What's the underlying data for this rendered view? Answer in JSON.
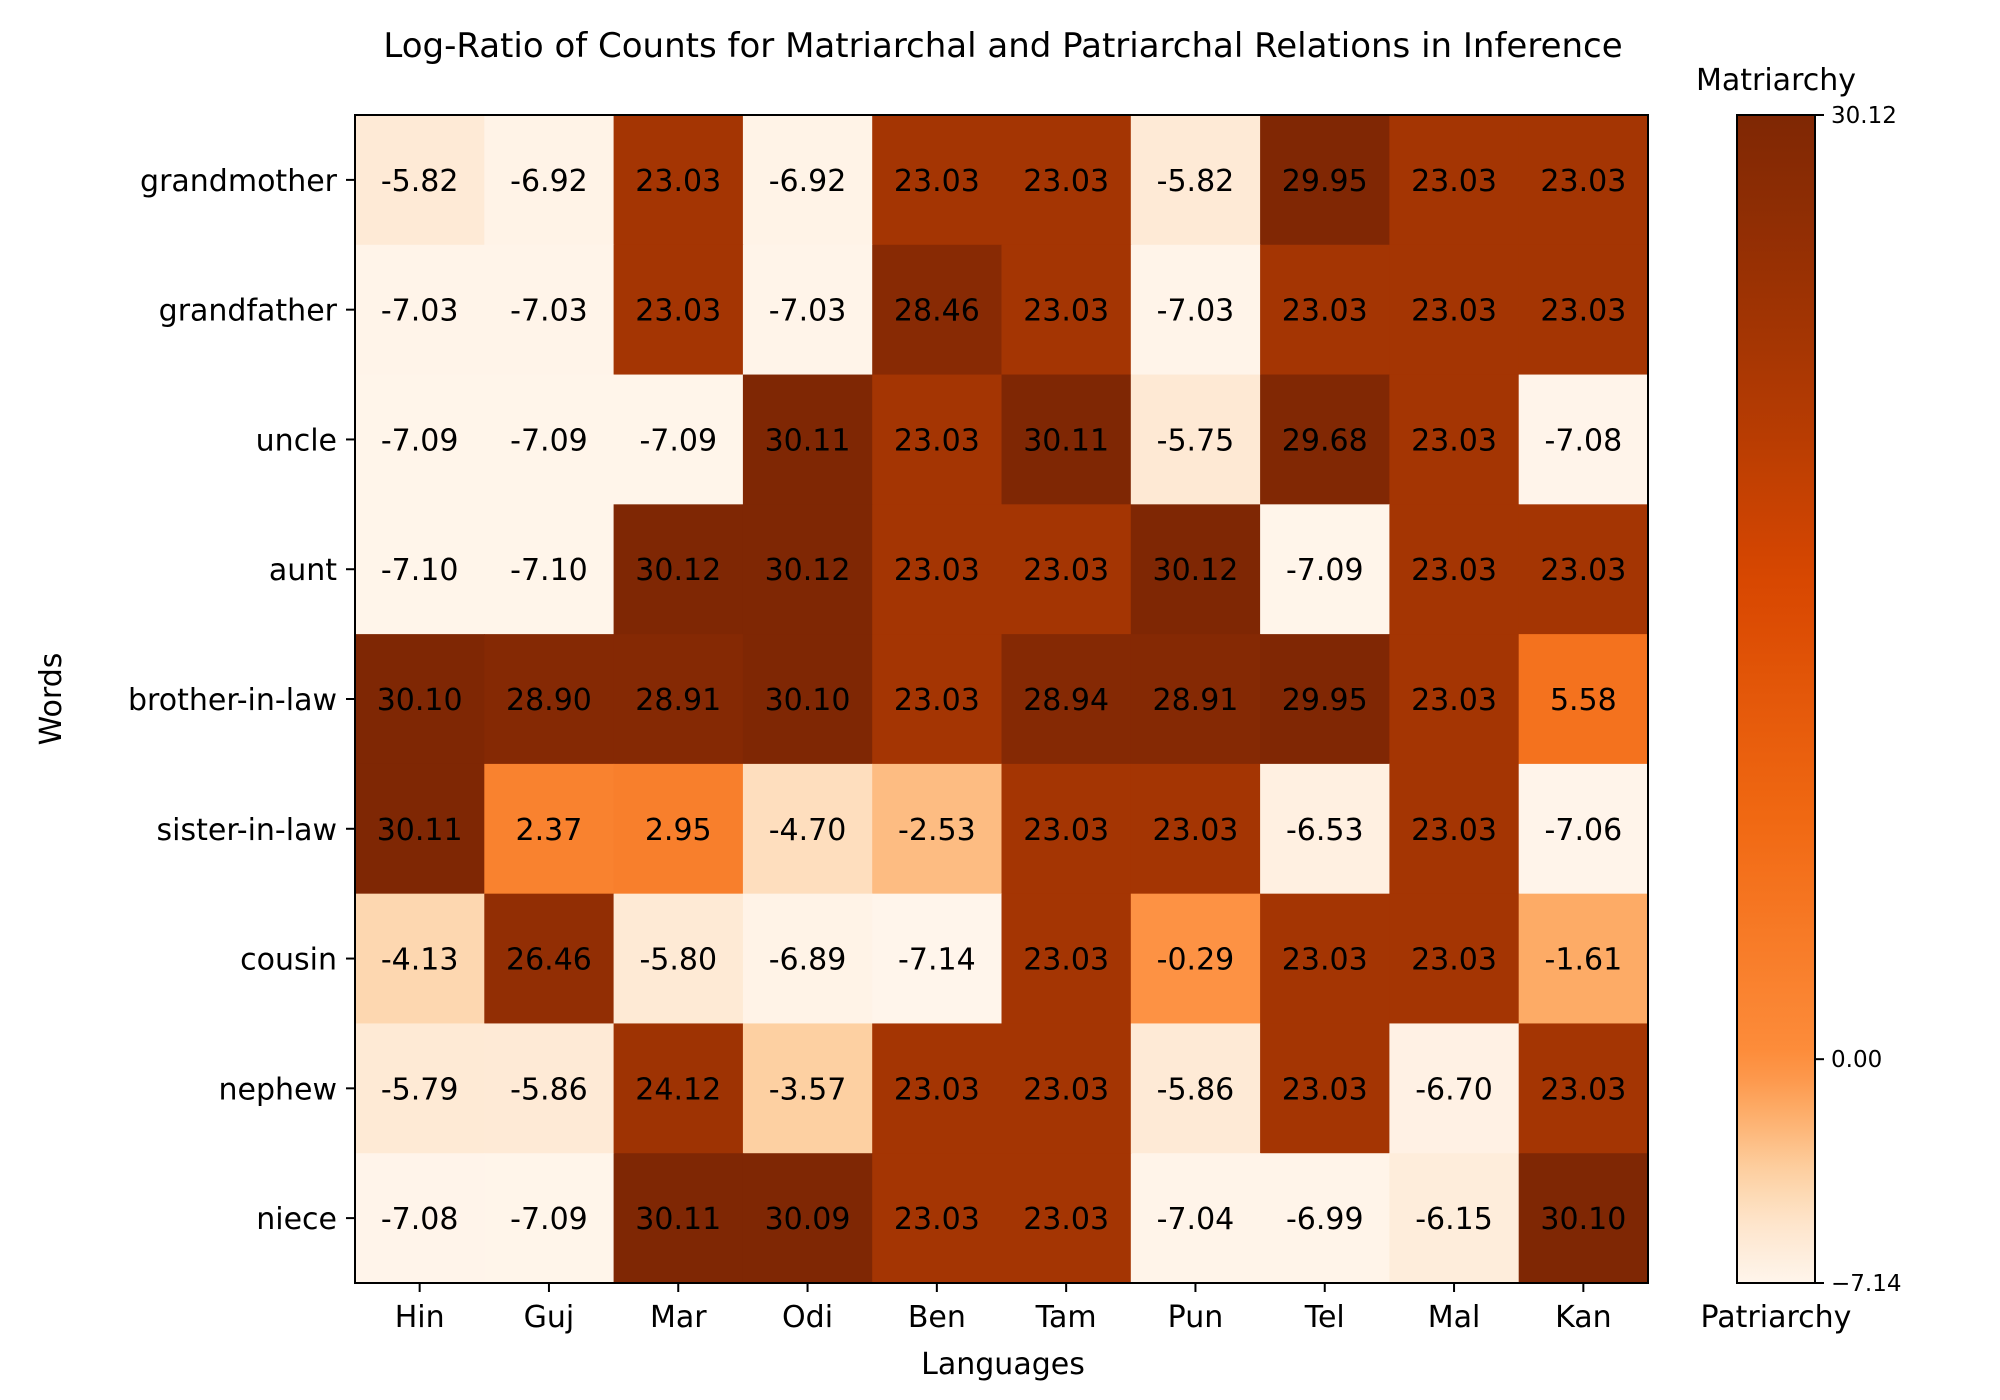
{
  "chart_data": {
    "type": "heatmap",
    "title": "Log-Ratio of Counts for Matriarchal and Patriarchal Relations in Inference",
    "xlabel": "Languages",
    "ylabel": "Words",
    "x_categories": [
      "Hin",
      "Guj",
      "Mar",
      "Odi",
      "Ben",
      "Tam",
      "Pun",
      "Tel",
      "Mal",
      "Kan"
    ],
    "y_categories": [
      "grandmother",
      "grandfather",
      "uncle",
      "aunt",
      "brother-in-law",
      "sister-in-law",
      "cousin",
      "nephew",
      "niece"
    ],
    "values": [
      [
        -5.82,
        -6.92,
        23.03,
        -6.92,
        23.03,
        23.03,
        -5.82,
        29.95,
        23.03,
        23.03
      ],
      [
        -7.03,
        -7.03,
        23.03,
        -7.03,
        28.46,
        23.03,
        -7.03,
        23.03,
        23.03,
        23.03
      ],
      [
        -7.09,
        -7.09,
        -7.09,
        30.11,
        23.03,
        30.11,
        -5.75,
        29.68,
        23.03,
        -7.08
      ],
      [
        -7.1,
        -7.1,
        30.12,
        30.12,
        23.03,
        23.03,
        30.12,
        -7.09,
        23.03,
        23.03
      ],
      [
        30.1,
        28.9,
        28.91,
        30.1,
        23.03,
        28.94,
        28.91,
        29.95,
        23.03,
        5.58
      ],
      [
        30.11,
        2.37,
        2.95,
        -4.7,
        -2.53,
        23.03,
        23.03,
        -6.53,
        23.03,
        -7.06
      ],
      [
        -4.13,
        26.46,
        -5.8,
        -6.89,
        -7.14,
        23.03,
        -0.29,
        23.03,
        23.03,
        -1.61
      ],
      [
        -5.79,
        -5.86,
        24.12,
        -3.57,
        23.03,
        23.03,
        -5.86,
        23.03,
        -6.7,
        23.03
      ],
      [
        -7.08,
        -7.09,
        30.11,
        30.09,
        23.03,
        23.03,
        -7.04,
        -6.99,
        -6.15,
        30.1
      ]
    ],
    "value_labels": [
      [
        "-5.82",
        "-6.92",
        "23.03",
        "-6.92",
        "23.03",
        "23.03",
        "-5.82",
        "29.95",
        "23.03",
        "23.03"
      ],
      [
        "-7.03",
        "-7.03",
        "23.03",
        "-7.03",
        "28.46",
        "23.03",
        "-7.03",
        "23.03",
        "23.03",
        "23.03"
      ],
      [
        "-7.09",
        "-7.09",
        "-7.09",
        "30.11",
        "23.03",
        "30.11",
        "-5.75",
        "29.68",
        "23.03",
        "-7.08"
      ],
      [
        "-7.10",
        "-7.10",
        "30.12",
        "30.12",
        "23.03",
        "23.03",
        "30.12",
        "-7.09",
        "23.03",
        "23.03"
      ],
      [
        "30.10",
        "28.90",
        "28.91",
        "30.10",
        "23.03",
        "28.94",
        "28.91",
        "29.95",
        "23.03",
        "5.58"
      ],
      [
        "30.11",
        "2.37",
        "2.95",
        "-4.70",
        "-2.53",
        "23.03",
        "23.03",
        "-6.53",
        "23.03",
        "-7.06"
      ],
      [
        "-4.13",
        "26.46",
        "-5.80",
        "-6.89",
        "-7.14",
        "23.03",
        "-0.29",
        "23.03",
        "23.03",
        "-1.61"
      ],
      [
        "-5.79",
        "-5.86",
        "24.12",
        "-3.57",
        "23.03",
        "23.03",
        "-5.86",
        "23.03",
        "-6.70",
        "23.03"
      ],
      [
        "-7.08",
        "-7.09",
        "30.11",
        "30.09",
        "23.03",
        "23.03",
        "-7.04",
        "-6.99",
        "-6.15",
        "30.10"
      ]
    ],
    "colormap": "Oranges",
    "color_norm": "two-slope, center 0",
    "vmin": -7.14,
    "vcenter": 0,
    "vmax": 30.12,
    "colorbar": {
      "top_label": "Matriarchy",
      "bottom_label": "Patriarchy",
      "ticks": [
        30.12,
        0.0,
        -7.14
      ],
      "tick_labels": [
        "30.12",
        "0.00",
        "−7.14"
      ]
    },
    "colormap_stops": [
      "#fff5eb",
      "#fee6ce",
      "#fdd0a2",
      "#fdae6b",
      "#fd8d3c",
      "#f16913",
      "#d94801",
      "#a63603",
      "#7f2704"
    ]
  }
}
